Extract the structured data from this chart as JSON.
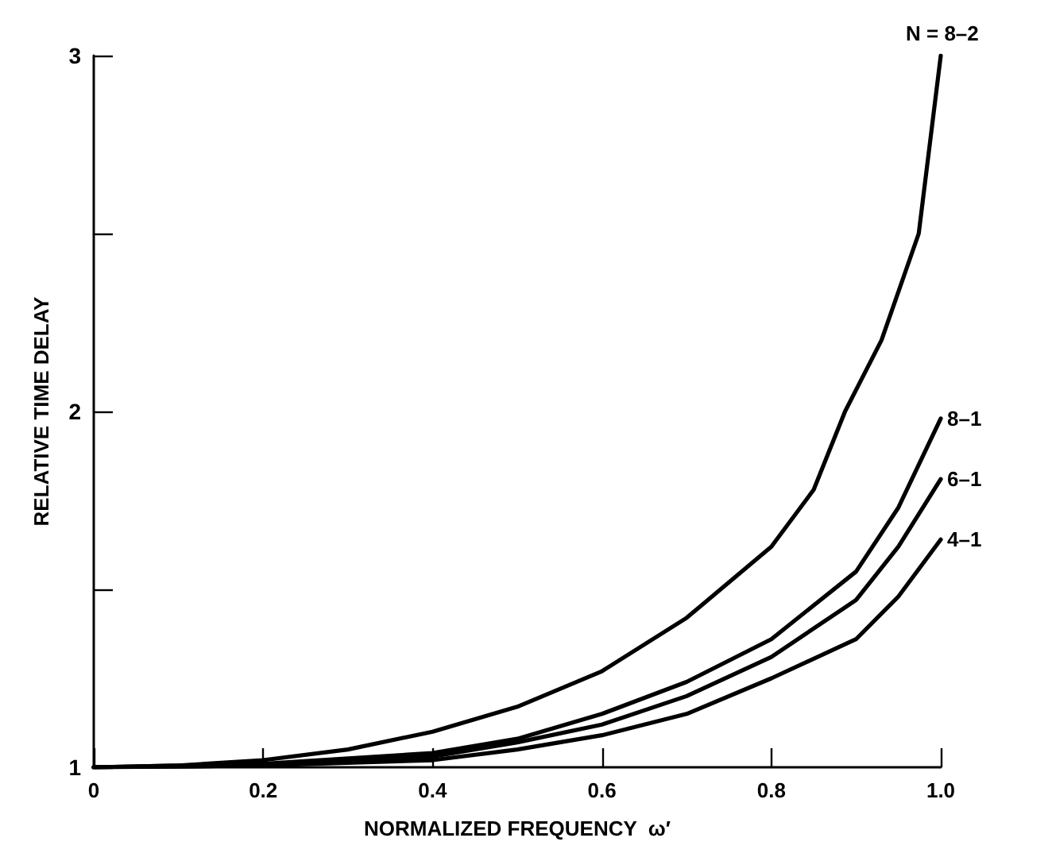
{
  "chart_data": {
    "type": "line",
    "xlabel": "NORMALIZED FREQUENCY  ω′",
    "ylabel": "RELATIVE TIME DELAY",
    "xlim": [
      0,
      1
    ],
    "ylim": [
      1,
      3
    ],
    "xticks": [
      0,
      0.2,
      0.4,
      0.6,
      0.8,
      {
        "value": 1,
        "label": "1.0"
      }
    ],
    "yticks": [
      1,
      {
        "value": 1.5,
        "label": null
      },
      2,
      {
        "value": 2.5,
        "label": null
      },
      3
    ],
    "grid": false,
    "legend": false,
    "marker": "none",
    "line_style": "solid",
    "series": [
      {
        "name": "N = 8–2",
        "color": "#000000",
        "x": [
          0,
          0.1,
          0.2,
          0.3,
          0.4,
          0.5,
          0.6,
          0.7,
          0.8,
          0.85,
          0.887,
          0.93,
          0.974,
          1.0
        ],
        "values": [
          1,
          1.005,
          1.02,
          1.05,
          1.1,
          1.17,
          1.27,
          1.42,
          1.62,
          1.78,
          2.0,
          2.2,
          2.5,
          3.0
        ]
      },
      {
        "name": "8–1",
        "color": "#000000",
        "x": [
          0,
          0.2,
          0.4,
          0.5,
          0.6,
          0.7,
          0.8,
          0.9,
          0.95,
          1.0
        ],
        "values": [
          1,
          1.01,
          1.04,
          1.08,
          1.15,
          1.24,
          1.36,
          1.55,
          1.73,
          1.98
        ]
      },
      {
        "name": "6–1",
        "color": "#000000",
        "x": [
          0,
          0.2,
          0.4,
          0.5,
          0.6,
          0.7,
          0.8,
          0.9,
          0.95,
          1.0
        ],
        "values": [
          1,
          1.005,
          1.03,
          1.07,
          1.12,
          1.2,
          1.31,
          1.47,
          1.62,
          1.81
        ]
      },
      {
        "name": "4–1",
        "color": "#000000",
        "x": [
          0,
          0.2,
          0.4,
          0.5,
          0.6,
          0.7,
          0.8,
          0.9,
          0.95,
          1.0
        ],
        "values": [
          1,
          1.005,
          1.02,
          1.05,
          1.09,
          1.15,
          1.25,
          1.36,
          1.48,
          1.64
        ]
      }
    ]
  }
}
